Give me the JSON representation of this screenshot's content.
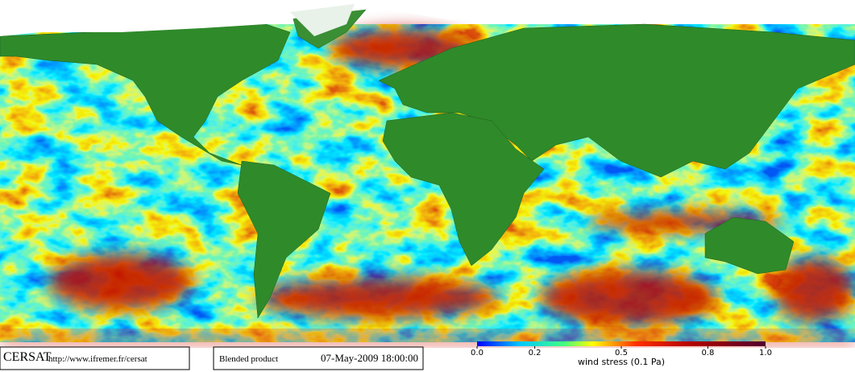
{
  "header": {
    "logo": "CERSAT",
    "url": "http://www.ifremer.fr/cersat",
    "product": "Blended product",
    "date": "07-May-2009 18:00:00"
  },
  "colorbar": {
    "label": "wind stress (0.1 Pa)",
    "lim": [
      0,
      1
    ],
    "ticks": [
      {
        "value": 0,
        "label": "0.0"
      },
      0.2,
      0.5,
      0.8,
      {
        "value": 1,
        "label": "1.0"
      }
    ]
  }
}
